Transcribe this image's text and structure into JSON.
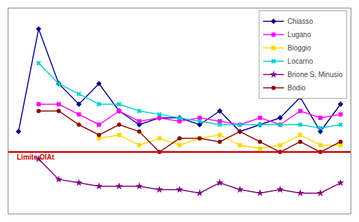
{
  "chart_data": {
    "type": "line",
    "series": [
      {
        "name": "Chiasso",
        "color": "#00008B",
        "marker": "diamond",
        "x": [
          1,
          2,
          3,
          4,
          5,
          6,
          7,
          8,
          9,
          10,
          11,
          12,
          13,
          14,
          15,
          16,
          17
        ],
        "values": [
          42,
          72,
          56,
          50,
          56,
          48,
          44,
          46,
          46,
          44,
          48,
          42,
          44,
          46,
          52,
          42,
          50
        ]
      },
      {
        "name": "Lugano",
        "color": "#FF00FF",
        "marker": "square",
        "x": [
          2,
          3,
          4,
          5,
          6,
          7,
          8,
          9,
          10,
          11,
          12,
          13,
          14,
          15,
          16,
          17
        ],
        "values": [
          50,
          50,
          47,
          44,
          48,
          45,
          46,
          45,
          46,
          45,
          44,
          46,
          44,
          48,
          46,
          47
        ]
      },
      {
        "name": "Bioggio",
        "color": "#FFD700",
        "marker": "square",
        "x": [
          5,
          6,
          7,
          8,
          9,
          10,
          11,
          12,
          13,
          14,
          15,
          16,
          17
        ],
        "values": [
          40,
          41,
          38,
          40,
          38,
          40,
          41,
          38,
          37,
          38,
          41,
          38,
          38
        ]
      },
      {
        "name": "Locarno",
        "color": "#00CED1",
        "marker": "x",
        "x": [
          2,
          3,
          4,
          5,
          6,
          7,
          8,
          9,
          10,
          11,
          12,
          13,
          14,
          15,
          16,
          17
        ],
        "values": [
          62,
          56,
          53,
          50,
          50,
          48,
          47,
          46,
          45,
          44,
          44,
          44,
          44,
          44,
          43,
          44
        ]
      },
      {
        "name": "Brione S. Minusio",
        "color": "#800080",
        "marker": "star",
        "x": [
          2,
          3,
          4,
          5,
          6,
          7,
          8,
          9,
          10,
          11,
          12,
          13,
          14,
          15,
          16,
          17
        ],
        "values": [
          34,
          28,
          27,
          26,
          26,
          26,
          25,
          25,
          24,
          27,
          25,
          24,
          25,
          24,
          24,
          27
        ]
      },
      {
        "name": "Bodio",
        "color": "#8B0000",
        "marker": "circle",
        "x": [
          2,
          3,
          4,
          5,
          6,
          7,
          8,
          9,
          10,
          11,
          12,
          13,
          14,
          15,
          16,
          17
        ],
        "values": [
          48,
          48,
          44,
          41,
          44,
          42,
          36,
          40,
          40,
          39,
          42,
          39,
          36,
          39,
          36,
          39
        ]
      }
    ],
    "reference_lines": [
      {
        "value": 36,
        "label": "Limite OIAt",
        "color": "#CC0000"
      }
    ],
    "xlim": [
      0.5,
      17.5
    ],
    "ylim": [
      18,
      78
    ],
    "xticks": [],
    "yticks": [],
    "tick_labels": false,
    "grid": false,
    "legend": "upper right"
  }
}
